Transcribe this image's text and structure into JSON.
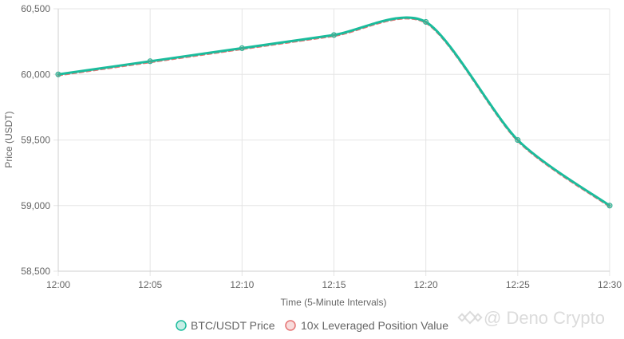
{
  "chart_data": {
    "type": "line",
    "xlabel": "Time (5-Minute Intervals)",
    "ylabel": "Price (USDT)",
    "categories": [
      "12:00",
      "12:05",
      "12:10",
      "12:15",
      "12:20",
      "12:25",
      "12:30"
    ],
    "ylim": [
      58500,
      60500
    ],
    "yticks": [
      "58,500",
      "59,000",
      "59,500",
      "60,000",
      "60,500"
    ],
    "ytick_values": [
      58500,
      59000,
      59500,
      60000,
      60500
    ],
    "grid": true,
    "legend_position": "bottom",
    "series": [
      {
        "name": "BTC/USDT Price",
        "values": [
          60000,
          60100,
          60200,
          60300,
          60400,
          59500,
          59000
        ],
        "color": "#1abc9c",
        "style": "solid"
      },
      {
        "name": "10x Leveraged Position Value",
        "values": [
          60000,
          60100,
          60200,
          60300,
          60400,
          59500,
          59000
        ],
        "color": "#e57373",
        "style": "dashed"
      }
    ]
  },
  "watermark": {
    "text": "@ Deno Crypto",
    "icon": "binance-logo-icon"
  }
}
